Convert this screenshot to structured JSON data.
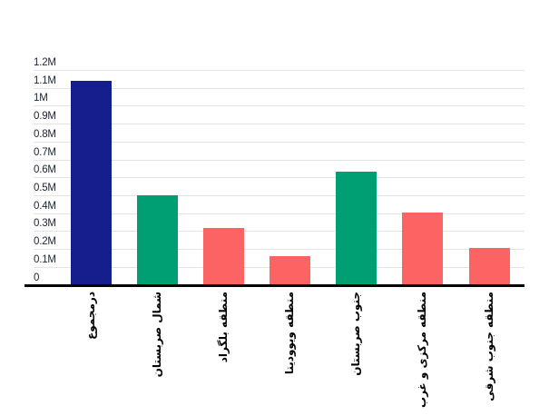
{
  "chart_data": {
    "type": "bar",
    "title": "",
    "categories": [
      "درمجموع",
      "شمال صربستان",
      "منطقه بلگراد",
      "منطقه ویوودینا",
      "جنوب صربستان",
      "منطقه مرکزی و غرب",
      "منطقه جنوب شرقی"
    ],
    "categories_translit": [
      "total",
      "north-serbia",
      "belgrade-region",
      "vojvodina-region",
      "south-serbia",
      "central-and-west-region",
      "southeast-region"
    ],
    "values_millions": [
      1.14,
      0.5,
      0.315,
      0.16,
      0.63,
      0.405,
      0.205
    ],
    "bar_colors": [
      "#141e8c",
      "#009e73",
      "#fc6464",
      "#fc6464",
      "#009e73",
      "#fc6464",
      "#fc6464"
    ],
    "y_ticks": [
      {
        "label": "1.2M",
        "value": 1.2
      },
      {
        "label": "1.1M",
        "value": 1.1
      },
      {
        "label": "1M",
        "value": 1.0
      },
      {
        "label": "0.9M",
        "value": 0.9
      },
      {
        "label": "0.8M",
        "value": 0.8
      },
      {
        "label": "0.7M",
        "value": 0.7
      },
      {
        "label": "0.6M",
        "value": 0.6
      },
      {
        "label": "0.5M",
        "value": 0.5
      },
      {
        "label": "0.4M",
        "value": 0.4
      },
      {
        "label": "0.3M",
        "value": 0.3
      },
      {
        "label": "0.2M",
        "value": 0.2
      },
      {
        "label": "0.1M",
        "value": 0.1
      },
      {
        "label": "0",
        "value": 0.0
      }
    ],
    "ylim": [
      0,
      1.2
    ],
    "grid": true,
    "legend": "none",
    "colors": {
      "grid": "#e3e3e3",
      "axis": "#000000",
      "tick_label": "#1d2334",
      "category_label": "#000000",
      "background": "#ffffff"
    }
  }
}
